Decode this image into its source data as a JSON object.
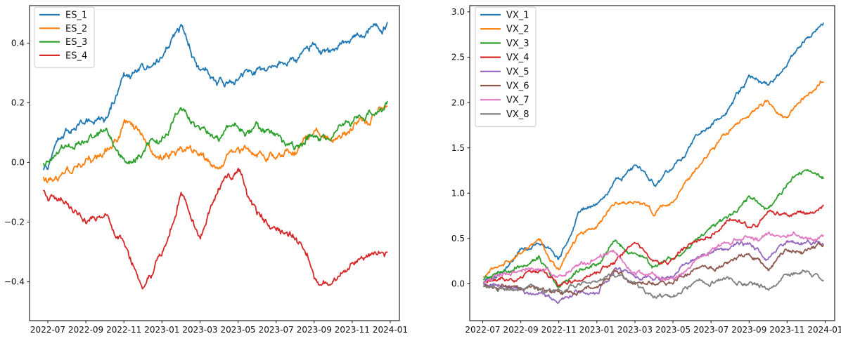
{
  "figure": {
    "background": "#ffffff",
    "spine_color": "#262626",
    "tick_color": "#262626"
  },
  "chart_data": [
    {
      "id": "es",
      "type": "line",
      "title": "",
      "xlabel": "",
      "ylabel": "",
      "grid": false,
      "legend_position": "upper left",
      "x_tick_labels": [
        "2022-07",
        "2022-09",
        "2022-11",
        "2023-01",
        "2023-03",
        "2023-05",
        "2023-07",
        "2023-09",
        "2023-11",
        "2024-01"
      ],
      "x_keys": [
        "2022-06",
        "2022-07",
        "2022-08",
        "2022-09",
        "2022-10",
        "2022-11",
        "2022-12",
        "2023-01",
        "2023-02",
        "2023-03",
        "2023-04",
        "2023-05",
        "2023-06",
        "2023-07",
        "2023-08",
        "2023-09",
        "2023-10",
        "2023-11",
        "2023-12",
        "2024-01"
      ],
      "y_ticks": [
        0.4,
        0.2,
        0.0,
        -0.2,
        -0.4
      ],
      "y_tick_labels": [
        "0.4",
        "0.2",
        "0.0",
        "−0.2",
        "−0.4"
      ],
      "ylim": [
        -0.533,
        0.527
      ],
      "series": [
        {
          "name": "ES_1",
          "color": "#1f77b4",
          "values": [
            0.0,
            -0.02,
            0.09,
            0.14,
            0.13,
            0.31,
            0.31,
            0.35,
            0.45,
            0.3,
            0.28,
            0.3,
            0.31,
            0.33,
            0.34,
            0.4,
            0.37,
            0.43,
            0.47,
            0.48
          ]
        },
        {
          "name": "ES_2",
          "color": "#ff7f0e",
          "values": [
            0.0,
            -0.06,
            -0.03,
            0.0,
            0.02,
            0.12,
            0.1,
            0.03,
            0.06,
            0.01,
            -0.02,
            0.02,
            0.02,
            0.02,
            0.04,
            0.09,
            0.08,
            0.12,
            0.17,
            0.2
          ]
        },
        {
          "name": "ES_3",
          "color": "#2ca02c",
          "values": [
            0.0,
            0.0,
            0.06,
            0.08,
            0.1,
            0.0,
            0.05,
            0.08,
            0.17,
            0.12,
            0.08,
            0.1,
            0.11,
            0.08,
            0.03,
            0.1,
            0.09,
            0.14,
            0.16,
            0.2
          ]
        },
        {
          "name": "ES_4",
          "color": "#d62728",
          "values": [
            0.0,
            -0.12,
            -0.13,
            -0.17,
            -0.2,
            -0.27,
            -0.44,
            -0.33,
            -0.1,
            -0.26,
            -0.1,
            -0.02,
            -0.17,
            -0.23,
            -0.26,
            -0.38,
            -0.42,
            -0.33,
            -0.3,
            -0.31
          ]
        }
      ]
    },
    {
      "id": "vx",
      "type": "line",
      "title": "",
      "xlabel": "",
      "ylabel": "",
      "grid": false,
      "legend_position": "upper left",
      "x_tick_labels": [
        "2022-07",
        "2022-09",
        "2022-11",
        "2023-01",
        "2023-03",
        "2023-05",
        "2023-07",
        "2023-09",
        "2023-11",
        "2024-01"
      ],
      "x_keys": [
        "2022-06",
        "2022-07",
        "2022-08",
        "2022-09",
        "2022-10",
        "2022-11",
        "2022-12",
        "2023-01",
        "2023-02",
        "2023-03",
        "2023-04",
        "2023-05",
        "2023-06",
        "2023-07",
        "2023-08",
        "2023-09",
        "2023-10",
        "2023-11",
        "2023-12",
        "2024-01"
      ],
      "y_ticks": [
        3.0,
        2.5,
        2.0,
        1.5,
        1.0,
        0.5,
        0.0
      ],
      "y_tick_labels": [
        "3.0",
        "2.5",
        "2.0",
        "1.5",
        "1.0",
        "0.5",
        "0.0"
      ],
      "ylim": [
        -0.414,
        3.068
      ],
      "series": [
        {
          "name": "VX_1",
          "color": "#1f77b4",
          "values": [
            0.0,
            0.02,
            0.15,
            0.4,
            0.47,
            0.25,
            0.74,
            0.85,
            1.12,
            1.3,
            1.1,
            1.29,
            1.5,
            1.75,
            1.95,
            2.27,
            2.17,
            2.45,
            2.72,
            2.92
          ]
        },
        {
          "name": "VX_2",
          "color": "#ff7f0e",
          "values": [
            0.0,
            0.06,
            0.18,
            0.35,
            0.45,
            0.2,
            0.52,
            0.63,
            0.88,
            0.9,
            0.76,
            0.94,
            1.22,
            1.5,
            1.67,
            1.87,
            2.02,
            1.8,
            2.1,
            2.27
          ]
        },
        {
          "name": "VX_3",
          "color": "#2ca02c",
          "values": [
            0.0,
            0.03,
            0.1,
            0.2,
            0.28,
            -0.02,
            0.17,
            0.22,
            0.5,
            0.34,
            0.2,
            0.27,
            0.45,
            0.62,
            0.72,
            0.95,
            0.83,
            1.1,
            1.25,
            1.18
          ]
        },
        {
          "name": "VX_4",
          "color": "#d62728",
          "values": [
            0.0,
            0.02,
            0.06,
            0.1,
            0.14,
            -0.03,
            0.07,
            0.12,
            0.3,
            0.45,
            0.23,
            0.28,
            0.42,
            0.55,
            0.7,
            0.62,
            0.73,
            0.78,
            0.82,
            0.85
          ]
        },
        {
          "name": "VX_5",
          "color": "#9467bd",
          "values": [
            0.0,
            -0.01,
            -0.04,
            -0.07,
            -0.12,
            -0.22,
            -0.12,
            -0.06,
            0.2,
            0.02,
            0.06,
            0.1,
            0.25,
            0.35,
            0.38,
            0.44,
            0.26,
            0.4,
            0.42,
            0.45
          ]
        },
        {
          "name": "VX_6",
          "color": "#8c564b",
          "values": [
            0.0,
            -0.01,
            -0.03,
            -0.05,
            -0.08,
            -0.14,
            -0.08,
            -0.04,
            0.15,
            -0.02,
            0.02,
            0.0,
            0.15,
            0.2,
            0.28,
            0.36,
            0.17,
            0.32,
            0.38,
            0.4
          ]
        },
        {
          "name": "VX_7",
          "color": "#e377c2",
          "values": [
            0.0,
            0.02,
            0.09,
            0.16,
            0.19,
            0.1,
            0.24,
            0.29,
            0.34,
            0.12,
            0.1,
            0.07,
            0.25,
            0.36,
            0.44,
            0.54,
            0.5,
            0.48,
            0.52,
            0.52
          ]
        },
        {
          "name": "VX_8",
          "color": "#7f7f7f",
          "values": [
            0.0,
            -0.01,
            -0.03,
            -0.05,
            -0.06,
            -0.1,
            -0.04,
            0.0,
            0.08,
            -0.04,
            -0.18,
            -0.12,
            0.0,
            0.03,
            0.05,
            0.02,
            -0.06,
            0.1,
            0.13,
            0.1
          ]
        }
      ]
    }
  ]
}
